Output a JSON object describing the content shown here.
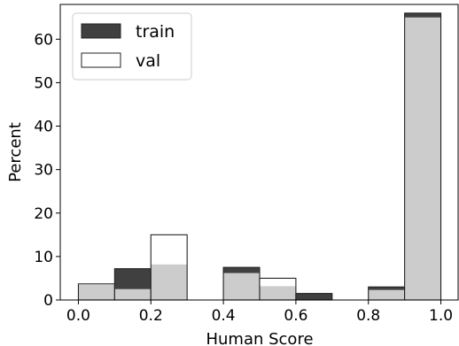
{
  "chart_data": {
    "type": "bar",
    "title": "",
    "xlabel": "Human Score",
    "ylabel": "Percent",
    "xlim": [
      -0.05,
      1.05
    ],
    "ylim": [
      0,
      68
    ],
    "xticks": [
      0.0,
      0.2,
      0.4,
      0.6,
      0.8,
      1.0
    ],
    "xtick_labels": [
      "0.0",
      "0.2",
      "0.4",
      "0.6",
      "0.8",
      "1.0"
    ],
    "yticks": [
      0,
      10,
      20,
      30,
      40,
      50,
      60
    ],
    "ytick_labels": [
      "0",
      "10",
      "20",
      "30",
      "40",
      "50",
      "60"
    ],
    "bin_edges": [
      0.0,
      0.1,
      0.2,
      0.3,
      0.4,
      0.5,
      0.6,
      0.7,
      0.8,
      0.9,
      1.0
    ],
    "grid": false,
    "legend_position": "top-left",
    "overlap_color": "#cccccc",
    "series": [
      {
        "name": "train",
        "color": "#404040",
        "values": [
          3.5,
          7.2,
          8.2,
          0,
          7.5,
          3.2,
          1.5,
          0,
          3.0,
          66.0
        ]
      },
      {
        "name": "val",
        "color": "#ffffff",
        "values": [
          3.7,
          2.5,
          15.0,
          0,
          6.2,
          5.0,
          0,
          0,
          2.3,
          65.0
        ]
      }
    ]
  }
}
